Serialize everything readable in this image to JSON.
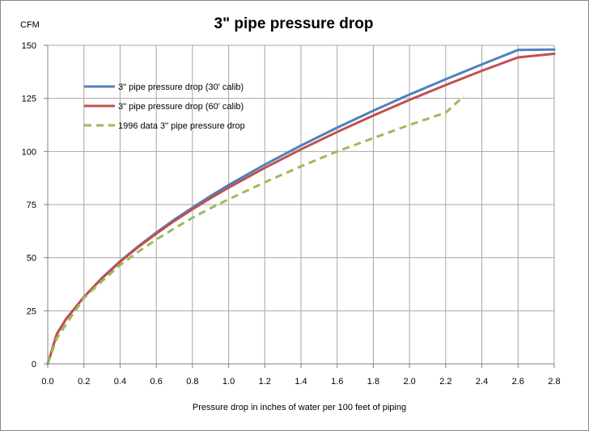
{
  "chart_data": {
    "type": "line",
    "title": "3\" pipe pressure drop",
    "xlabel": "Pressure drop in inches of water per 100 feet of piping",
    "ylabel": "CFM",
    "xlim": [
      0,
      2.8
    ],
    "ylim": [
      0,
      150
    ],
    "x_ticks": [
      "0.0",
      "0.2",
      "0.4",
      "0.6",
      "0.8",
      "1.0",
      "1.2",
      "1.4",
      "1.6",
      "1.8",
      "2.0",
      "2.2",
      "2.4",
      "2.6",
      "2.8"
    ],
    "y_ticks": [
      "0",
      "25",
      "50",
      "75",
      "100",
      "125",
      "150"
    ],
    "grid": true,
    "legend_position": "top-left",
    "series": [
      {
        "name": "3\" pipe pressure drop (30' calib)",
        "color": "#4F81BD",
        "style": "solid",
        "x": [
          0,
          0.05,
          0.1,
          0.2,
          0.3,
          0.4,
          0.5,
          0.6,
          0.7,
          0.8,
          0.9,
          1.0,
          1.2,
          1.4,
          1.6,
          1.8,
          2.0,
          2.2,
          2.4,
          2.6,
          2.8
        ],
        "y": [
          0,
          14,
          21,
          31.5,
          40.5,
          48.3,
          55.3,
          61.8,
          67.9,
          73.6,
          79.0,
          84.2,
          93.8,
          102.8,
          111.2,
          119.2,
          126.8,
          134.0,
          141.0,
          147.8,
          148.0
        ]
      },
      {
        "name": "3\" pipe pressure drop (60' calib)",
        "color": "#C0504D",
        "style": "solid",
        "x": [
          0,
          0.05,
          0.1,
          0.2,
          0.3,
          0.4,
          0.5,
          0.6,
          0.7,
          0.8,
          0.9,
          1.0,
          1.2,
          1.4,
          1.6,
          1.8,
          2.0,
          2.2,
          2.4,
          2.6,
          2.8
        ],
        "y": [
          0,
          14,
          21,
          31.5,
          40.3,
          48.0,
          55.0,
          61.3,
          67.3,
          72.8,
          78.0,
          83.0,
          92.3,
          101.0,
          109.2,
          116.9,
          124.3,
          131.3,
          138.0,
          144.3,
          146.0
        ]
      },
      {
        "name": "1996 data 3\" pipe pressure drop",
        "color": "#9BBB59",
        "style": "dashed",
        "x": [
          0,
          0.05,
          0.1,
          0.2,
          0.3,
          0.4,
          0.5,
          0.6,
          0.7,
          0.8,
          0.9,
          1.0,
          1.2,
          1.4,
          1.6,
          1.8,
          2.0,
          2.2,
          2.3
        ],
        "y": [
          0,
          12,
          18.5,
          31.0,
          39.0,
          46.5,
          52.8,
          58.5,
          63.8,
          68.8,
          73.3,
          77.5,
          85.5,
          93.0,
          100.0,
          106.3,
          112.5,
          118.3,
          126.0
        ]
      }
    ]
  }
}
